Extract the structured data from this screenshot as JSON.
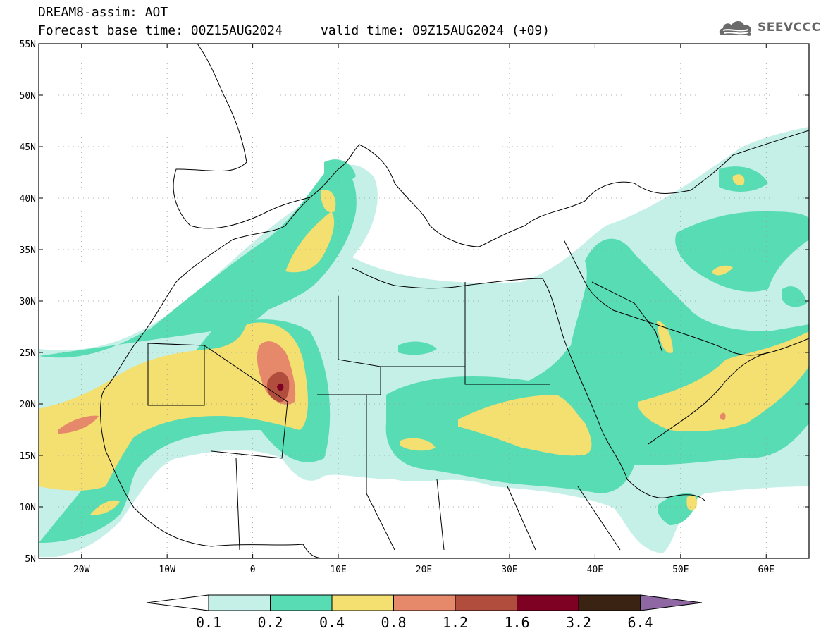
{
  "header": {
    "title_line1": "DREAM8-assim: AOT",
    "title_line2": "Forecast base time: 00Z15AUG2024     valid time: 09Z15AUG2024 (+09)",
    "logo_text": "SEEVCCC",
    "logo_icon": "cloud-icon"
  },
  "map": {
    "extent": {
      "lon_min": -25,
      "lon_max": 65,
      "lat_min": 5,
      "lat_max": 55
    },
    "lat_ticks": [
      {
        "value": 55,
        "label": "55N"
      },
      {
        "value": 50,
        "label": "50N"
      },
      {
        "value": 45,
        "label": "45N"
      },
      {
        "value": 40,
        "label": "40N"
      },
      {
        "value": 35,
        "label": "35N"
      },
      {
        "value": 30,
        "label": "30N"
      },
      {
        "value": 25,
        "label": "25N"
      },
      {
        "value": 20,
        "label": "20N"
      },
      {
        "value": 15,
        "label": "15N"
      },
      {
        "value": 10,
        "label": "10N"
      },
      {
        "value": 5,
        "label": "5N"
      }
    ],
    "lon_ticks": [
      {
        "value": -20,
        "label": "20W"
      },
      {
        "value": -10,
        "label": "10W"
      },
      {
        "value": 0,
        "label": "0"
      },
      {
        "value": 10,
        "label": "10E"
      },
      {
        "value": 20,
        "label": "20E"
      },
      {
        "value": 30,
        "label": "30E"
      },
      {
        "value": 40,
        "label": "40E"
      },
      {
        "value": 50,
        "label": "50E"
      },
      {
        "value": 60,
        "label": "60E"
      }
    ],
    "grid": true
  },
  "colorbar": {
    "colors": [
      "#c5f0e8",
      "#58dcb4",
      "#f4e070",
      "#e6896a",
      "#b14d3d",
      "#7e0022",
      "#3b2314"
    ],
    "under_color": "#ffffff",
    "over_color": "#8e67a3",
    "labels": [
      "0.1",
      "0.2",
      "0.4",
      "0.8",
      "1.2",
      "1.6",
      "3.2",
      "6.4"
    ]
  }
}
